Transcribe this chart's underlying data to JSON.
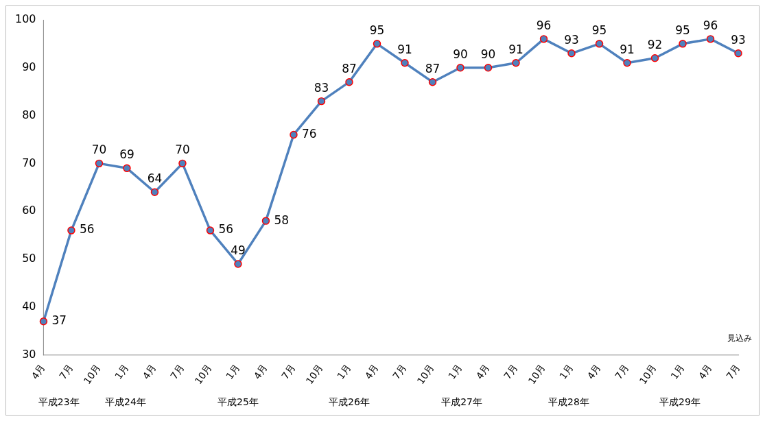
{
  "chart_data": {
    "type": "line",
    "categories": [
      "4月",
      "7月",
      "10月",
      "1月",
      "4月",
      "7月",
      "10月",
      "1月",
      "4月",
      "7月",
      "10月",
      "1月",
      "4月",
      "7月",
      "10月",
      "1月",
      "4月",
      "7月",
      "10月",
      "1月",
      "4月",
      "7月",
      "10月",
      "1月",
      "4月",
      "7月"
    ],
    "series": [
      {
        "color": "#4f81bd",
        "values": [
          37,
          56,
          70,
          69,
          64,
          70,
          56,
          49,
          58,
          76,
          83,
          87,
          95,
          91,
          87,
          90,
          90,
          91,
          96,
          93,
          95,
          91,
          92,
          95,
          96,
          93
        ]
      }
    ],
    "ylim": [
      30,
      100
    ],
    "yticks": [
      30,
      40,
      50,
      60,
      70,
      80,
      90,
      100
    ],
    "grid": false,
    "legend": false,
    "marker": "circle",
    "line_style": "solid",
    "data_labels": true,
    "annotations": [
      "平成23年",
      "平成24年",
      "平成25年",
      "平成26年",
      "平成27年",
      "平成28年",
      "平成29年",
      "見込み"
    ]
  }
}
